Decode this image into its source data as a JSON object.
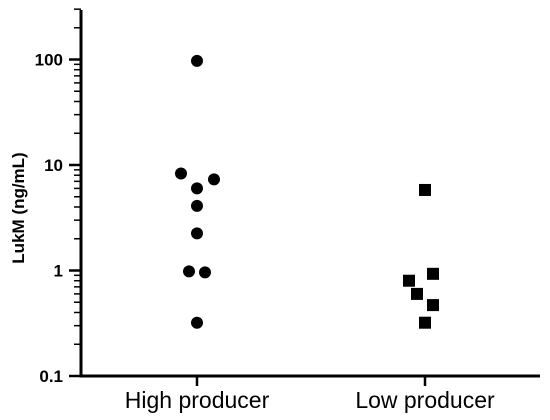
{
  "chart_data": {
    "type": "scatter",
    "ylabel": "LukM (ng/mL)",
    "yscale": "log",
    "ylim": [
      0.1,
      300
    ],
    "ytick_labels": [
      "0.1",
      "1",
      "10",
      "100"
    ],
    "categories": [
      "High producer",
      "Low producer"
    ],
    "series": [
      {
        "category": "High producer",
        "marker": "circle",
        "points": [
          {
            "x_jitter": 0.0,
            "y": 97
          },
          {
            "x_jitter": -0.16,
            "y": 8.3
          },
          {
            "x_jitter": 0.17,
            "y": 7.3
          },
          {
            "x_jitter": 0.0,
            "y": 6.0
          },
          {
            "x_jitter": 0.0,
            "y": 4.1
          },
          {
            "x_jitter": 0.0,
            "y": 2.25
          },
          {
            "x_jitter": -0.08,
            "y": 0.98
          },
          {
            "x_jitter": 0.08,
            "y": 0.96
          },
          {
            "x_jitter": 0.0,
            "y": 0.32
          }
        ]
      },
      {
        "category": "Low producer",
        "marker": "square",
        "points": [
          {
            "x_jitter": 0.0,
            "y": 5.8
          },
          {
            "x_jitter": 0.08,
            "y": 0.93
          },
          {
            "x_jitter": -0.16,
            "y": 0.8
          },
          {
            "x_jitter": -0.08,
            "y": 0.6
          },
          {
            "x_jitter": 0.08,
            "y": 0.47
          },
          {
            "x_jitter": 0.0,
            "y": 0.32
          }
        ]
      }
    ],
    "colors": {
      "marker": "#000000",
      "axis": "#000000"
    }
  }
}
